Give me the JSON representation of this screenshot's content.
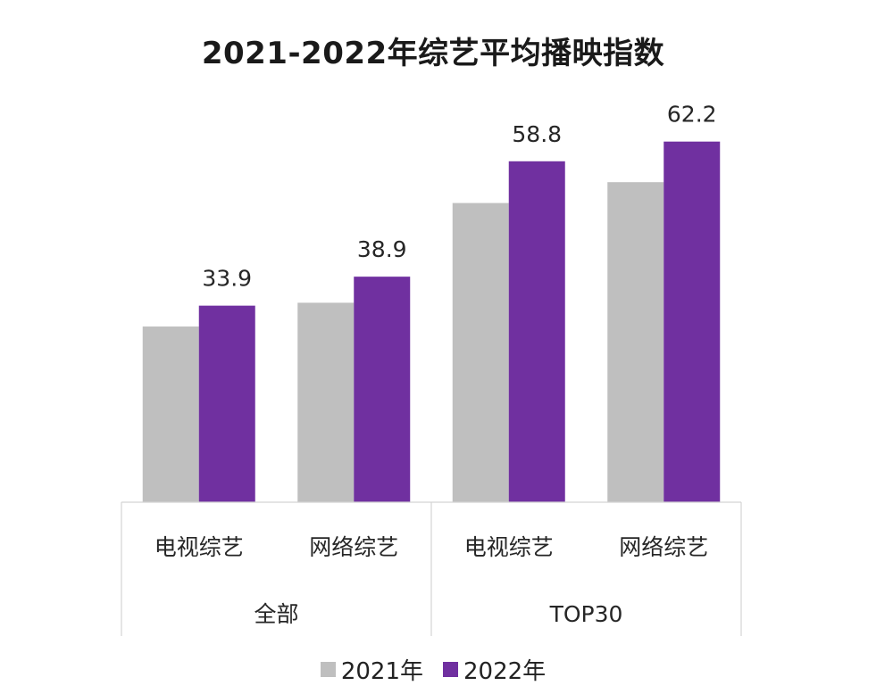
{
  "chart_data": {
    "type": "bar",
    "title": "2021-2022年综艺平均播映指数",
    "categories": [
      "电视综艺",
      "网络综艺",
      "电视综艺",
      "网络综艺"
    ],
    "groups": [
      {
        "label": "全部",
        "span": [
          0,
          1
        ]
      },
      {
        "label": "TOP30",
        "span": [
          2,
          3
        ]
      }
    ],
    "series": [
      {
        "name": "2021年",
        "color": "#bfbfbf",
        "values": [
          30.3,
          34.4,
          51.6,
          55.2
        ]
      },
      {
        "name": "2022年",
        "color": "#7030a0",
        "values": [
          33.9,
          38.9,
          58.8,
          62.2
        ]
      }
    ],
    "data_labels_series": 1,
    "ylim": [
      0,
      70
    ],
    "legend_position": "bottom",
    "grid": false
  }
}
